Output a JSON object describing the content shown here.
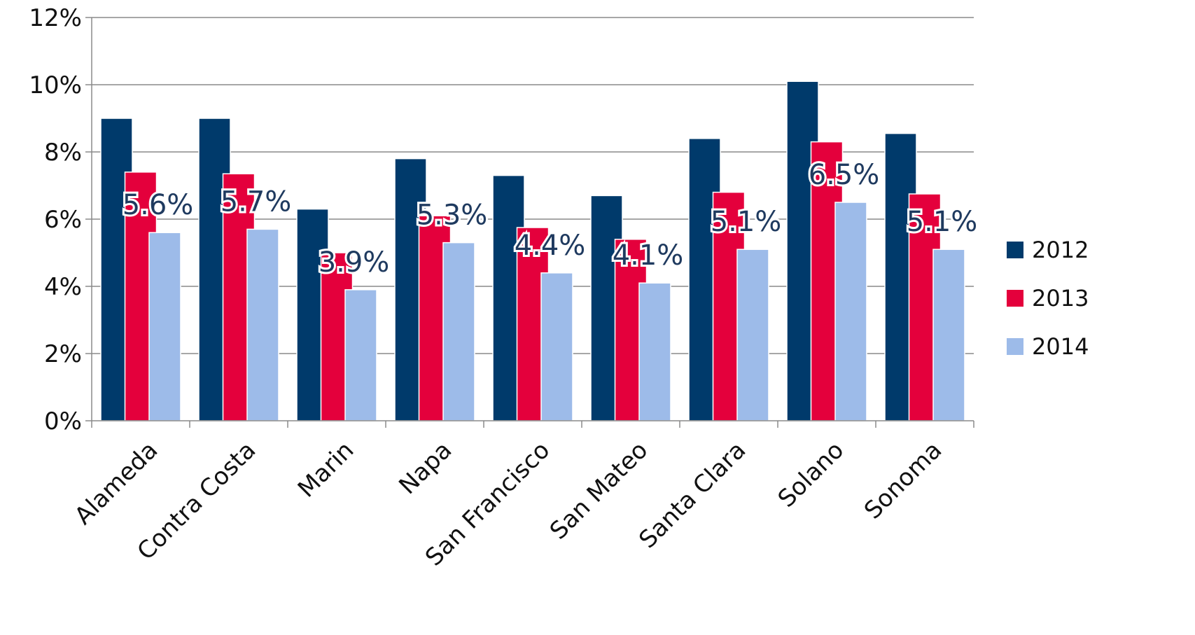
{
  "chart_data": {
    "type": "bar",
    "title": "",
    "xlabel": "",
    "ylabel": "",
    "categories": [
      "Alameda",
      "Contra Costa",
      "Marin",
      "Napa",
      "San Francisco",
      "San Mateo",
      "Santa Clara",
      "Solano",
      "Sonoma"
    ],
    "series": [
      {
        "name": "2012",
        "color": "#003a6b",
        "values": [
          9.0,
          9.0,
          6.3,
          7.8,
          7.3,
          6.7,
          8.4,
          10.1,
          8.55
        ]
      },
      {
        "name": "2013",
        "color": "#e4003c",
        "values": [
          7.4,
          7.35,
          5.0,
          6.1,
          5.75,
          5.4,
          6.8,
          8.3,
          6.75
        ]
      },
      {
        "name": "2014",
        "color": "#9dbbe9",
        "values": [
          5.6,
          5.7,
          3.9,
          5.3,
          4.4,
          4.1,
          5.1,
          6.5,
          5.1
        ]
      }
    ],
    "data_labels": [
      "5.6%",
      "5.7%",
      "3.9%",
      "5.3%",
      "4.4%",
      "4.1%",
      "5.1%",
      "6.5%",
      "5.1%"
    ],
    "ylim": [
      0,
      12
    ],
    "yticks": [
      0,
      2,
      4,
      6,
      8,
      10,
      12
    ],
    "ytick_labels": [
      "0%",
      "2%",
      "4%",
      "6%",
      "8%",
      "10%",
      "12%"
    ],
    "grid": true,
    "legend_position": "right"
  }
}
